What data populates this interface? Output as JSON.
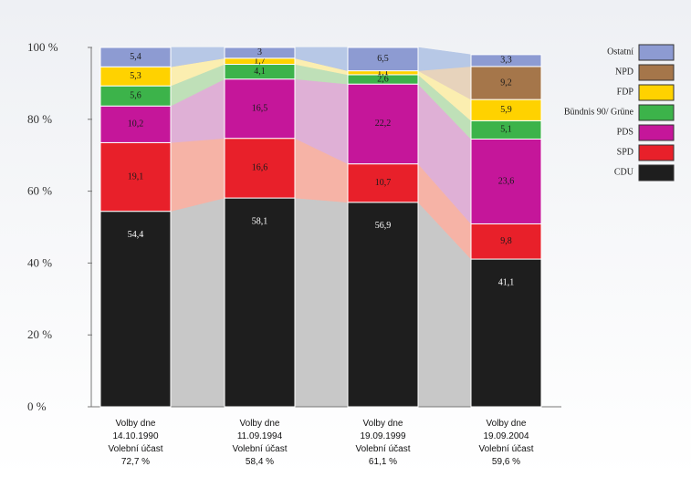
{
  "chart_data": {
    "type": "bar",
    "stacked": true,
    "ylim": [
      0,
      100
    ],
    "yticks": [
      "0 %",
      "20 %",
      "40 %",
      "60 %",
      "80 %",
      "100 %"
    ],
    "categories": [
      [
        "Volby dne",
        "14.10.1990",
        "Volební účast",
        "72,7 %"
      ],
      [
        "Volby dne",
        "11.09.1994",
        "Volební účast",
        "58,4 %"
      ],
      [
        "Volby dne",
        "19.09.1999",
        "Volební účast",
        "61,1 %"
      ],
      [
        "Volby dne",
        "19.09.2004",
        "Volební účast",
        "59,6 %"
      ]
    ],
    "series": [
      {
        "name": "CDU",
        "color": "#1e1e1e",
        "fill": "#c8c8c8",
        "label_color": "#ffffff",
        "values": [
          54.4,
          58.1,
          56.9,
          41.1
        ]
      },
      {
        "name": "SPD",
        "color": "#e8202a",
        "fill": "#f6b3a6",
        "label_color": "#1a1a1a",
        "values": [
          19.1,
          16.6,
          10.7,
          9.8
        ]
      },
      {
        "name": "PDS",
        "color": "#c5169a",
        "fill": "#dfb0d6",
        "label_color": "#1a1a1a",
        "values": [
          10.2,
          16.5,
          22.2,
          23.6
        ]
      },
      {
        "name": "Bündnis 90/ Grüne",
        "color": "#3cb34a",
        "fill": "#bfe0b8",
        "label_color": "#1a1a1a",
        "values": [
          5.6,
          4.1,
          2.6,
          5.1
        ]
      },
      {
        "name": "FDP",
        "color": "#ffd200",
        "fill": "#fbeeb0",
        "label_color": "#1a1a1a",
        "values": [
          5.3,
          1.7,
          1.1,
          5.9
        ]
      },
      {
        "name": "NPD",
        "color": "#a5764a",
        "fill": "#e7d3bc",
        "label_color": "#1a1a1a",
        "values": [
          0,
          0,
          0,
          9.2
        ]
      },
      {
        "name": "Ostatní",
        "color": "#8d9bd2",
        "fill": "#b7c8e6",
        "label_color": "#1a1a1a",
        "values": [
          5.4,
          3.0,
          6.5,
          3.3
        ]
      }
    ],
    "legend_placement": "right"
  }
}
